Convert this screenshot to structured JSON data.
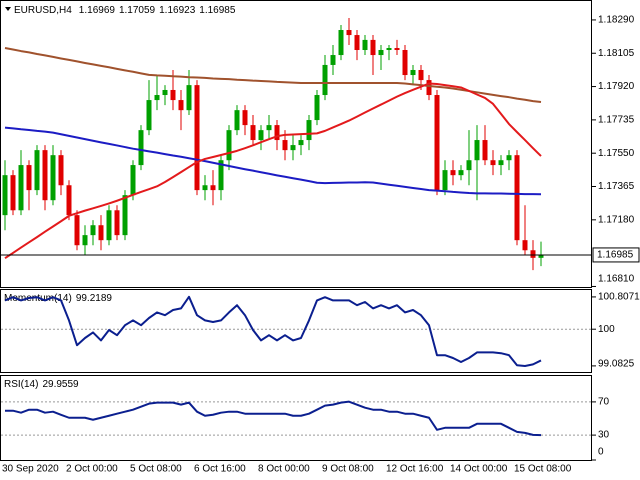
{
  "chart_data": [
    {
      "type": "candlestick",
      "title": "EURUSD,H4",
      "categories": [
        "30 Sep 2020",
        null,
        null,
        null,
        null,
        null,
        null,
        null,
        "2 Oct 00:00",
        null,
        null,
        null,
        null,
        null,
        null,
        null,
        "5 Oct 08:00",
        null,
        null,
        null,
        null,
        null,
        null,
        null,
        "6 Oct 16:00",
        null,
        null,
        null,
        null,
        null,
        null,
        null,
        "8 Oct 00:00",
        null,
        null,
        null,
        null,
        null,
        null,
        null,
        "9 Oct 08:00",
        null,
        null,
        null,
        null,
        null,
        null,
        null,
        "12 Oct 16:00",
        null,
        null,
        null,
        null,
        null,
        null,
        null,
        "14 Oct 00:00",
        null,
        null,
        null,
        null,
        null,
        null,
        null,
        "15 Oct 08:00",
        null,
        null,
        null
      ],
      "open": [
        1.17206,
        1.17428,
        1.17233,
        1.17484,
        1.17345,
        1.17567,
        1.17289,
        1.17539,
        1.17372,
        1.17206,
        1.17039,
        1.17095,
        1.1715,
        1.17067,
        1.17233,
        1.17095,
        1.17317,
        1.17484,
        1.17678,
        1.17845,
        1.17873,
        1.17901,
        1.17845,
        1.17789,
        1.17928,
        1.17345,
        1.17372,
        1.17345,
        1.17511,
        1.17678,
        1.17789,
        1.17706,
        1.17623,
        1.17678,
        1.17706,
        1.17623,
        1.17567,
        1.17595,
        1.17623,
        1.17734,
        1.17873,
        1.1804,
        1.18095,
        1.18234,
        1.18206,
        1.18123,
        1.18179,
        1.18095,
        1.18123,
        1.18134,
        1.18123,
        1.17984,
        1.18012,
        1.17956,
        1.17873,
        1.17345,
        1.17456,
        1.17428,
        1.17456,
        1.17511,
        1.17623,
        1.17511,
        1.17484,
        1.17511,
        1.17539,
        1.17067,
        1.17011,
        1.16969
      ],
      "high": [
        1.17511,
        1.17456,
        1.17567,
        1.17511,
        1.17595,
        1.17595,
        1.17595,
        1.17567,
        1.174,
        1.17233,
        1.1715,
        1.17178,
        1.17206,
        1.17261,
        1.17261,
        1.17345,
        1.17511,
        1.17706,
        1.17956,
        1.17984,
        1.17928,
        1.18012,
        1.17901,
        1.18012,
        1.17956,
        1.17428,
        1.17456,
        1.17539,
        1.17706,
        1.17817,
        1.17817,
        1.17762,
        1.17706,
        1.17762,
        1.17734,
        1.17678,
        1.1765,
        1.1765,
        1.17762,
        1.17901,
        1.18095,
        1.18151,
        1.18262,
        1.18301,
        1.18234,
        1.18206,
        1.18206,
        1.18151,
        1.18151,
        1.18179,
        1.18151,
        1.1804,
        1.1804,
        1.17984,
        1.17901,
        1.17511,
        1.17511,
        1.17484,
        1.17678,
        1.17706,
        1.17706,
        1.17567,
        1.17539,
        1.17567,
        1.17567,
        1.17261,
        1.17067,
        1.17059
      ],
      "low": [
        1.17122,
        1.17206,
        1.17206,
        1.17233,
        1.17317,
        1.17233,
        1.17261,
        1.17317,
        1.17178,
        1.17011,
        1.16983,
        1.17039,
        1.17011,
        1.17039,
        1.17067,
        1.17067,
        1.17289,
        1.17456,
        1.1765,
        1.17789,
        1.17817,
        1.17789,
        1.17678,
        1.17762,
        1.17317,
        1.17289,
        1.17261,
        1.17289,
        1.17456,
        1.1765,
        1.1765,
        1.17595,
        1.17567,
        1.17623,
        1.17567,
        1.17511,
        1.17511,
        1.17539,
        1.17567,
        1.17706,
        1.17845,
        1.17984,
        1.18067,
        1.18151,
        1.18067,
        1.18095,
        1.17984,
        1.18012,
        1.18067,
        1.18095,
        1.17956,
        1.17928,
        1.17901,
        1.17845,
        1.17317,
        1.17317,
        1.17372,
        1.174,
        1.17372,
        1.17289,
        1.17484,
        1.17428,
        1.17428,
        1.17456,
        1.17039,
        1.16983,
        1.16901,
        1.16923
      ],
      "close": [
        1.17428,
        1.17233,
        1.17484,
        1.17345,
        1.17567,
        1.17289,
        1.17539,
        1.17372,
        1.17206,
        1.17039,
        1.17095,
        1.1715,
        1.17067,
        1.17233,
        1.17095,
        1.17317,
        1.17484,
        1.17678,
        1.17845,
        1.17873,
        1.17901,
        1.17845,
        1.17789,
        1.17928,
        1.17345,
        1.17372,
        1.17345,
        1.17511,
        1.17678,
        1.17789,
        1.17706,
        1.17623,
        1.17678,
        1.17706,
        1.17623,
        1.17567,
        1.17595,
        1.17623,
        1.17734,
        1.17873,
        1.1804,
        1.18095,
        1.18234,
        1.18206,
        1.18123,
        1.18179,
        1.18095,
        1.18123,
        1.18134,
        1.18123,
        1.17984,
        1.18012,
        1.17956,
        1.17873,
        1.17345,
        1.17456,
        1.17428,
        1.17456,
        1.17511,
        1.17623,
        1.17511,
        1.17484,
        1.17511,
        1.17539,
        1.17067,
        1.17011,
        1.16969,
        1.16985
      ],
      "up_color": "#00a000",
      "down_color": "#e00000",
      "series": [
        {
          "color": "#a0522d",
          "values": [
            1.18134,
            1.18126,
            1.18117,
            1.1811,
            1.18101,
            1.18093,
            1.18085,
            1.18076,
            1.18068,
            1.1806,
            1.18051,
            1.18043,
            1.18035,
            1.18027,
            1.18018,
            1.1801,
            1.18002,
            1.17993,
            1.17985,
            1.17982,
            1.1798,
            1.17977,
            1.17975,
            1.17972,
            1.1797,
            1.17968,
            1.17965,
            1.17963,
            1.17961,
            1.17958,
            1.17956,
            1.17953,
            1.17951,
            1.17949,
            1.17946,
            1.17944,
            1.17942,
            1.1794,
            1.1794,
            1.1794,
            1.1794,
            1.1794,
            1.1794,
            1.1794,
            1.1794,
            1.1794,
            1.1794,
            1.1794,
            1.1794,
            1.1794,
            1.17937,
            1.17932,
            1.17928,
            1.17923,
            1.17919,
            1.17915,
            1.17909,
            1.17902,
            1.17895,
            1.17888,
            1.17881,
            1.17874,
            1.17867,
            1.17861,
            1.17853,
            1.17847,
            1.17839,
            1.17834
          ]
        },
        {
          "color": "#1c1cc4",
          "values": [
            1.17692,
            1.17688,
            1.17683,
            1.17679,
            1.17674,
            1.1767,
            1.17664,
            1.17655,
            1.17646,
            1.17637,
            1.17628,
            1.17619,
            1.1761,
            1.17602,
            1.17593,
            1.17584,
            1.17575,
            1.17568,
            1.1756,
            1.17553,
            1.17545,
            1.17537,
            1.1753,
            1.17522,
            1.17514,
            1.17506,
            1.17497,
            1.17488,
            1.17479,
            1.1747,
            1.17461,
            1.17453,
            1.17444,
            1.17436,
            1.17427,
            1.17419,
            1.17411,
            1.17403,
            1.17395,
            1.17386,
            1.17384,
            1.17385,
            1.17386,
            1.17387,
            1.17387,
            1.17389,
            1.17387,
            1.17381,
            1.17375,
            1.17369,
            1.17363,
            1.17357,
            1.17351,
            1.17345,
            1.17342,
            1.17339,
            1.17335,
            1.17332,
            1.17329,
            1.17327,
            1.17327,
            1.17326,
            1.17326,
            1.17325,
            1.17324,
            1.17323,
            1.17323,
            1.17322
          ]
        },
        {
          "color": "#e31a1c",
          "values": [
            1.16967,
            1.16996,
            1.17026,
            1.17055,
            1.17084,
            1.17114,
            1.17143,
            1.17172,
            1.17202,
            1.17217,
            1.17231,
            1.17244,
            1.17257,
            1.17271,
            1.17286,
            1.17302,
            1.17319,
            1.17335,
            1.1735,
            1.17366,
            1.1739,
            1.17417,
            1.17445,
            1.17473,
            1.17501,
            1.17518,
            1.17529,
            1.1754,
            1.17551,
            1.17563,
            1.17578,
            1.17594,
            1.17611,
            1.17628,
            1.17644,
            1.17652,
            1.17654,
            1.17656,
            1.17658,
            1.1766,
            1.17674,
            1.17693,
            1.17712,
            1.17731,
            1.17753,
            1.17776,
            1.17798,
            1.1782,
            1.17842,
            1.17864,
            1.17884,
            1.17902,
            1.17919,
            1.17937,
            1.17934,
            1.17928,
            1.17922,
            1.17915,
            1.17896,
            1.17876,
            1.17857,
            1.17824,
            1.17768,
            1.17712,
            1.17667,
            1.17623,
            1.17578,
            1.17534
          ]
        }
      ],
      "current_price_line": true,
      "ylim": [
        1.16807,
        1.18384
      ],
      "yticks": [
        {
          "value": 1.1829,
          "label": "1.18290"
        },
        1.18105,
        {
          "value": 1.1792,
          "label": "1.17920"
        },
        1.17735,
        {
          "value": 1.1755,
          "label": "1.17550"
        },
        1.17365,
        {
          "value": 1.1718,
          "label": "1.17180"
        },
        {
          "value": 1.1681,
          "label": "1.16810"
        }
      ]
    },
    {
      "type": "line",
      "title": "Momentum(14)",
      "color": "#0b1f8f",
      "values": [
        100.72,
        100.8,
        100.72,
        100.78,
        100.8,
        100.72,
        100.8,
        100.72,
        100.22,
        99.6,
        99.78,
        99.92,
        99.72,
        99.98,
        99.85,
        100.1,
        100.22,
        100.1,
        100.28,
        100.42,
        100.35,
        100.48,
        100.52,
        100.81,
        100.35,
        100.22,
        100.18,
        100.22,
        100.42,
        100.6,
        100.35,
        99.98,
        99.72,
        99.85,
        99.72,
        99.85,
        99.72,
        99.78,
        100.22,
        100.72,
        100.8,
        100.72,
        100.72,
        100.72,
        100.6,
        100.68,
        100.52,
        100.6,
        100.52,
        100.6,
        100.42,
        100.48,
        100.35,
        100.1,
        99.35,
        99.35,
        99.28,
        99.18,
        99.28,
        99.42,
        99.42,
        99.42,
        99.4,
        99.35,
        99.1,
        99.08,
        99.12,
        99.2189
      ],
      "ylim": [
        98.93,
        100.98
      ],
      "yticks": [
        100.8071,
        100,
        99.0825
      ],
      "levels": [
        100
      ]
    },
    {
      "type": "line",
      "title": "RSI(14)",
      "color": "#0b1f8f",
      "values": [
        59.4,
        59.4,
        57.0,
        60.6,
        60.6,
        57.0,
        58.2,
        54.5,
        50.9,
        50.9,
        50.9,
        48.5,
        50.9,
        53.3,
        55.8,
        58.2,
        60.6,
        64.2,
        67.9,
        69.1,
        69.1,
        69.1,
        66.7,
        69.1,
        58.2,
        53.3,
        54.5,
        57.0,
        58.2,
        58.2,
        55.8,
        55.8,
        55.8,
        55.8,
        55.8,
        55.8,
        53.3,
        53.3,
        55.8,
        60.6,
        65.5,
        66.7,
        69.1,
        70.3,
        66.7,
        63.0,
        60.6,
        60.6,
        58.2,
        58.2,
        55.8,
        55.8,
        53.3,
        50.9,
        36.4,
        38.8,
        38.8,
        38.8,
        38.8,
        43.6,
        43.6,
        43.6,
        43.6,
        38.8,
        33.9,
        32.7,
        30.3,
        29.9559
      ],
      "ylim": [
        0,
        100
      ],
      "yticks": [
        70,
        30,
        0
      ],
      "levels": [
        70,
        30
      ]
    }
  ]
}
